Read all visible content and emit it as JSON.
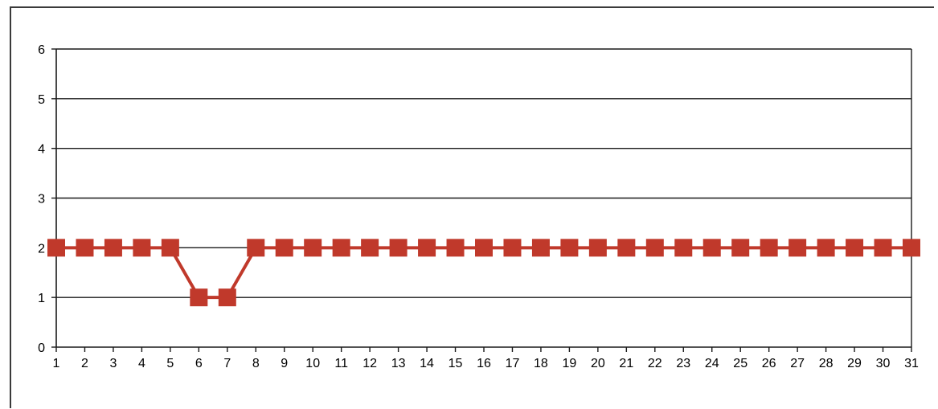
{
  "chart_data": {
    "type": "line",
    "title": "",
    "xlabel": "",
    "ylabel": "",
    "x": [
      1,
      2,
      3,
      4,
      5,
      6,
      7,
      8,
      9,
      10,
      11,
      12,
      13,
      14,
      15,
      16,
      17,
      18,
      19,
      20,
      21,
      22,
      23,
      24,
      25,
      26,
      27,
      28,
      29,
      30,
      31
    ],
    "series": [
      {
        "values": [
          2,
          2,
          2,
          2,
          2,
          1,
          1,
          2,
          2,
          2,
          2,
          2,
          2,
          2,
          2,
          2,
          2,
          2,
          2,
          2,
          2,
          2,
          2,
          2,
          2,
          2,
          2,
          2,
          2,
          2,
          2
        ],
        "color": "#c0392b"
      }
    ],
    "ylim": [
      0,
      6
    ],
    "yticks": [
      0,
      1,
      2,
      3,
      4,
      5,
      6
    ],
    "xlim": [
      1,
      31
    ],
    "grid": true,
    "legend": "none"
  }
}
